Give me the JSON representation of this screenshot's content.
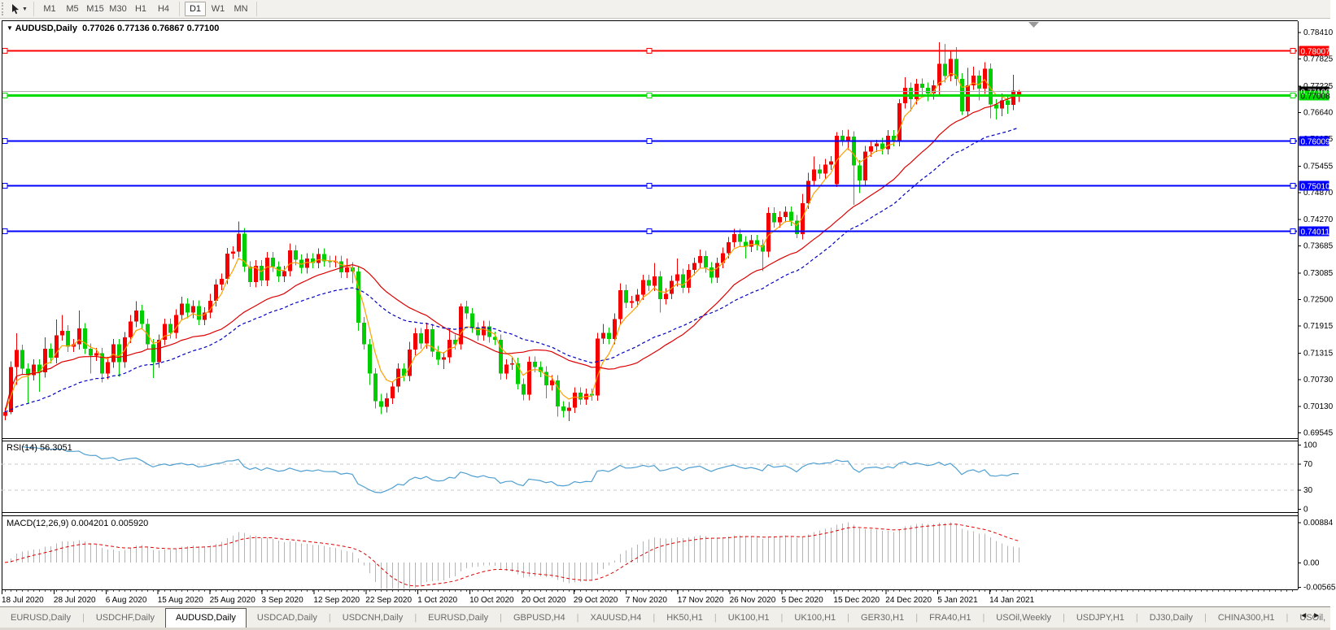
{
  "toolbar": {
    "timeframes": [
      "M1",
      "M5",
      "M15",
      "M30",
      "H1",
      "H4",
      "D1",
      "W1",
      "MN"
    ],
    "active_timeframe": "D1",
    "pointer_icon": "cursor-icon"
  },
  "chart": {
    "title": {
      "symbol": "AUDUSD,Daily",
      "open": "0.77026",
      "high": "0.77136",
      "low": "0.76867",
      "close": "0.77100"
    }
  },
  "indicators": {
    "rsi": {
      "name": "RSI(14)",
      "value": "56.3051",
      "levels": [
        "100",
        "70",
        "30",
        "0"
      ],
      "level_values": [
        100,
        70,
        30,
        0
      ]
    },
    "macd": {
      "name": "MACD(12,26,9)",
      "values": "0.004201 0.005920",
      "axis": [
        "0.00884",
        "0.00",
        "-0.00565"
      ],
      "axis_values": [
        0.00884,
        0,
        -0.00565
      ]
    }
  },
  "price_axis": {
    "ticks": [
      "0.78410",
      "0.77825",
      "0.77225",
      "0.76640",
      "0.76055",
      "0.75455",
      "0.74870",
      "0.74270",
      "0.73685",
      "0.73085",
      "0.72500",
      "0.71915",
      "0.71315",
      "0.70730",
      "0.70130",
      "0.69545"
    ]
  },
  "time_axis": {
    "labels": [
      {
        "x": 2,
        "text": "18 Jul 2020"
      },
      {
        "x": 65.9,
        "text": "28 Jul 2020"
      },
      {
        "x": 129.8,
        "text": "6 Aug 2020"
      },
      {
        "x": 193.7,
        "text": "15 Aug 2020"
      },
      {
        "x": 257.6,
        "text": "25 Aug 2020"
      },
      {
        "x": 321.5,
        "text": "3 Sep 2020"
      },
      {
        "x": 385.4,
        "text": "12 Sep 2020"
      },
      {
        "x": 449.3,
        "text": "22 Sep 2020"
      },
      {
        "x": 513.2,
        "text": "1 Oct 2020"
      },
      {
        "x": 577.1,
        "text": "10 Oct 2020"
      },
      {
        "x": 641.0,
        "text": "20 Oct 2020"
      },
      {
        "x": 704.9,
        "text": "29 Oct 2020"
      },
      {
        "x": 768.8,
        "text": "7 Nov 2020"
      },
      {
        "x": 832.7,
        "text": "17 Nov 2020"
      },
      {
        "x": 896.6,
        "text": "26 Nov 2020"
      },
      {
        "x": 960.5,
        "text": "5 Dec 2020"
      },
      {
        "x": 1024.4,
        "text": "15 Dec 2020"
      },
      {
        "x": 1088.3,
        "text": "24 Dec 2020"
      },
      {
        "x": 1152.2,
        "text": "5 Jan 2021"
      },
      {
        "x": 1216.1,
        "text": "14 Jan 2021"
      }
    ]
  },
  "lines": [
    {
      "price": 0.78007,
      "label": "0.78007",
      "color": "#FF0000",
      "width": 2,
      "text_color": "#FFFFFF"
    },
    {
      "price": 0.77008,
      "label": "0.77008",
      "color": "#00DC00",
      "width": 3,
      "text_color": "#000000"
    },
    {
      "price": 0.76009,
      "label": "0.76009",
      "color": "#0000FF",
      "width": 2,
      "text_color": "#FFFFFF"
    },
    {
      "price": 0.7501,
      "label": "0.75010",
      "color": "#0000FF",
      "width": 2,
      "text_color": "#FFFFFF"
    },
    {
      "price": 0.74011,
      "label": "0.74011",
      "color": "#0000FF",
      "width": 2,
      "text_color": "#FFFFFF"
    }
  ],
  "current_price": {
    "value": 0.771,
    "label": "0.77100",
    "line_color": "#B0B0B0",
    "box_color": "#000000"
  },
  "tabs": {
    "active_index": 2,
    "items": [
      "EURUSD,Daily",
      "USDCHF,Daily",
      "AUDUSD,Daily",
      "USDCAD,Daily",
      "USDCNH,Daily",
      "EURUSD,Daily",
      "GBPUSD,H4",
      "XAUUSD,H4",
      "HK50,H1",
      "UK100,H1",
      "UK100,H1",
      "GER30,H1",
      "FRA40,H1",
      "USOil,Weekly",
      "USDJPY,H1",
      "DJ30,Daily",
      "CHINA300,H1",
      "USOil,"
    ],
    "scroll_left": "◄",
    "scroll_right": "►"
  },
  "colors": {
    "bull": "#F40000",
    "bear": "#00CE00",
    "ma_fast": "#FFA000",
    "ma_mid": "#DD0000",
    "ma_slow": "#0000C0",
    "rsi": "#4F9FD0",
    "macd_hist": "#B4B4B4",
    "macd_signal": "#E00000",
    "border": "#000000",
    "grid_dash": "#CCCCCC"
  },
  "chart_data": {
    "type": "candlestick",
    "symbol": "AUDUSD",
    "timeframe": "Daily",
    "ylim": [
      0.69421,
      0.78655
    ],
    "overlays": [
      {
        "name": "MA fast",
        "method": "ema",
        "period": 5,
        "color": "#FFA000"
      },
      {
        "name": "MA mid",
        "method": "sma",
        "period": 25,
        "color": "#DD0000"
      },
      {
        "name": "MA slow",
        "method": "ema",
        "period": 40,
        "color": "#0000C0",
        "dashed": true
      }
    ],
    "panes": [
      {
        "type": "RSI",
        "period": 14,
        "current": 56.3051
      },
      {
        "type": "MACD",
        "fast": 12,
        "slow": 26,
        "signal": 9,
        "current": [
          0.004201,
          0.00592
        ]
      }
    ],
    "ohlc": [
      [
        0.6992,
        0.701,
        0.6982,
        0.7
      ],
      [
        0.7,
        0.7112,
        0.6995,
        0.71
      ],
      [
        0.71,
        0.7174,
        0.706,
        0.7137
      ],
      [
        0.7137,
        0.7149,
        0.7084,
        0.7096
      ],
      [
        0.7096,
        0.7108,
        0.702,
        0.7082
      ],
      [
        0.7082,
        0.7117,
        0.707,
        0.7105
      ],
      [
        0.7105,
        0.7117,
        0.7045,
        0.7088
      ],
      [
        0.7088,
        0.7165,
        0.7076,
        0.714
      ],
      [
        0.714,
        0.7152,
        0.7108,
        0.712
      ],
      [
        0.712,
        0.7205,
        0.7108,
        0.717
      ],
      [
        0.717,
        0.7215,
        0.7158,
        0.718
      ],
      [
        0.718,
        0.7192,
        0.7133,
        0.7145
      ],
      [
        0.7145,
        0.7162,
        0.7133,
        0.715
      ],
      [
        0.715,
        0.7225,
        0.7138,
        0.7185
      ],
      [
        0.7185,
        0.7197,
        0.7128,
        0.714
      ],
      [
        0.714,
        0.7152,
        0.7085,
        0.7125
      ],
      [
        0.7125,
        0.7142,
        0.7113,
        0.713
      ],
      [
        0.713,
        0.7142,
        0.7065,
        0.7085
      ],
      [
        0.7085,
        0.7122,
        0.7073,
        0.711
      ],
      [
        0.711,
        0.7162,
        0.7098,
        0.715
      ],
      [
        0.715,
        0.7162,
        0.7078,
        0.711
      ],
      [
        0.711,
        0.7177,
        0.7098,
        0.7165
      ],
      [
        0.7165,
        0.7215,
        0.7153,
        0.72
      ],
      [
        0.72,
        0.7245,
        0.7188,
        0.7225
      ],
      [
        0.7225,
        0.7237,
        0.7183,
        0.7195
      ],
      [
        0.7195,
        0.7207,
        0.7138,
        0.715
      ],
      [
        0.715,
        0.7162,
        0.7075,
        0.711
      ],
      [
        0.711,
        0.7172,
        0.7098,
        0.716
      ],
      [
        0.716,
        0.7207,
        0.7148,
        0.7195
      ],
      [
        0.7195,
        0.7207,
        0.7163,
        0.7175
      ],
      [
        0.7175,
        0.7227,
        0.7163,
        0.7215
      ],
      [
        0.7215,
        0.7255,
        0.7203,
        0.724
      ],
      [
        0.724,
        0.7252,
        0.7208,
        0.722
      ],
      [
        0.722,
        0.7247,
        0.7208,
        0.7235
      ],
      [
        0.7235,
        0.7247,
        0.7192,
        0.7204
      ],
      [
        0.7204,
        0.7232,
        0.7192,
        0.722
      ],
      [
        0.722,
        0.7262,
        0.7208,
        0.7246
      ],
      [
        0.7246,
        0.7294,
        0.7234,
        0.7282
      ],
      [
        0.7282,
        0.7307,
        0.727,
        0.7295
      ],
      [
        0.7295,
        0.7363,
        0.7283,
        0.7351
      ],
      [
        0.7351,
        0.7367,
        0.7339,
        0.7355
      ],
      [
        0.7355,
        0.7422,
        0.7343,
        0.7395
      ],
      [
        0.7395,
        0.7407,
        0.731,
        0.7322
      ],
      [
        0.7322,
        0.7334,
        0.7277,
        0.7288
      ],
      [
        0.7288,
        0.7336,
        0.7276,
        0.7324
      ],
      [
        0.7324,
        0.7336,
        0.7279,
        0.7291
      ],
      [
        0.7291,
        0.7354,
        0.7279,
        0.7342
      ],
      [
        0.7342,
        0.7354,
        0.731,
        0.7322
      ],
      [
        0.7322,
        0.7334,
        0.7288,
        0.73
      ],
      [
        0.73,
        0.7324,
        0.7288,
        0.7312
      ],
      [
        0.7312,
        0.7373,
        0.73,
        0.7358
      ],
      [
        0.7358,
        0.737,
        0.7325,
        0.7337
      ],
      [
        0.7337,
        0.7349,
        0.7307,
        0.7319
      ],
      [
        0.7319,
        0.7352,
        0.7307,
        0.734
      ],
      [
        0.734,
        0.7352,
        0.7318,
        0.733
      ],
      [
        0.733,
        0.7362,
        0.7318,
        0.735
      ],
      [
        0.735,
        0.7362,
        0.7322,
        0.7334
      ],
      [
        0.7334,
        0.7346,
        0.732,
        0.7332
      ],
      [
        0.7332,
        0.7346,
        0.732,
        0.7334
      ],
      [
        0.7334,
        0.7346,
        0.7297,
        0.7309
      ],
      [
        0.7309,
        0.734,
        0.7297,
        0.732
      ],
      [
        0.732,
        0.7332,
        0.7285,
        0.7311
      ],
      [
        0.7311,
        0.7323,
        0.718,
        0.7198
      ],
      [
        0.7198,
        0.721,
        0.7138,
        0.715
      ],
      [
        0.715,
        0.7162,
        0.706,
        0.7085
      ],
      [
        0.7085,
        0.7097,
        0.7008,
        0.7024
      ],
      [
        0.7024,
        0.704,
        0.6995,
        0.7011
      ],
      [
        0.7011,
        0.7042,
        0.6999,
        0.703
      ],
      [
        0.703,
        0.7068,
        0.7018,
        0.7056
      ],
      [
        0.7056,
        0.7108,
        0.7044,
        0.7096
      ],
      [
        0.7096,
        0.7108,
        0.7068,
        0.708
      ],
      [
        0.708,
        0.7155,
        0.7068,
        0.7138
      ],
      [
        0.7138,
        0.7186,
        0.7126,
        0.7174
      ],
      [
        0.7174,
        0.7186,
        0.714,
        0.7152
      ],
      [
        0.7152,
        0.7198,
        0.714,
        0.7183
      ],
      [
        0.7183,
        0.7195,
        0.7122,
        0.7134
      ],
      [
        0.7134,
        0.7146,
        0.7104,
        0.7116
      ],
      [
        0.7116,
        0.7133,
        0.7095,
        0.7121
      ],
      [
        0.7121,
        0.7185,
        0.7109,
        0.716
      ],
      [
        0.716,
        0.7172,
        0.7138,
        0.715
      ],
      [
        0.715,
        0.724,
        0.7138,
        0.7234
      ],
      [
        0.7234,
        0.7246,
        0.7206,
        0.7218
      ],
      [
        0.7218,
        0.723,
        0.7175,
        0.7187
      ],
      [
        0.7187,
        0.7199,
        0.7158,
        0.717
      ],
      [
        0.717,
        0.7202,
        0.7158,
        0.719
      ],
      [
        0.719,
        0.7202,
        0.7154,
        0.7166
      ],
      [
        0.7166,
        0.7178,
        0.7148,
        0.716
      ],
      [
        0.716,
        0.7172,
        0.7072,
        0.7085
      ],
      [
        0.7085,
        0.7117,
        0.7073,
        0.7105
      ],
      [
        0.7105,
        0.712,
        0.7093,
        0.7108
      ],
      [
        0.7108,
        0.712,
        0.705,
        0.7062
      ],
      [
        0.7062,
        0.7074,
        0.7026,
        0.7038
      ],
      [
        0.7038,
        0.7123,
        0.7026,
        0.7111
      ],
      [
        0.7111,
        0.7123,
        0.7088,
        0.71
      ],
      [
        0.71,
        0.7112,
        0.7077,
        0.7089
      ],
      [
        0.7089,
        0.7101,
        0.703,
        0.7059
      ],
      [
        0.7059,
        0.7082,
        0.7047,
        0.707
      ],
      [
        0.707,
        0.7082,
        0.699,
        0.7012
      ],
      [
        0.7012,
        0.7024,
        0.6988,
        0.7002
      ],
      [
        0.7002,
        0.7022,
        0.698,
        0.701
      ],
      [
        0.701,
        0.7055,
        0.6998,
        0.7043
      ],
      [
        0.7043,
        0.7055,
        0.7016,
        0.7028
      ],
      [
        0.7028,
        0.7052,
        0.7016,
        0.704
      ],
      [
        0.704,
        0.7052,
        0.7025,
        0.7037
      ],
      [
        0.7037,
        0.7175,
        0.7025,
        0.7163
      ],
      [
        0.7163,
        0.7195,
        0.7151,
        0.7175
      ],
      [
        0.7175,
        0.7187,
        0.715,
        0.7162
      ],
      [
        0.7162,
        0.7218,
        0.715,
        0.7206
      ],
      [
        0.7206,
        0.7285,
        0.7194,
        0.727
      ],
      [
        0.727,
        0.7282,
        0.723,
        0.7242
      ],
      [
        0.7242,
        0.7257,
        0.723,
        0.7245
      ],
      [
        0.7245,
        0.7272,
        0.7233,
        0.726
      ],
      [
        0.726,
        0.7304,
        0.7248,
        0.7292
      ],
      [
        0.7292,
        0.7304,
        0.7268,
        0.728
      ],
      [
        0.728,
        0.733,
        0.7268,
        0.73
      ],
      [
        0.73,
        0.7312,
        0.722,
        0.725
      ],
      [
        0.725,
        0.7274,
        0.7238,
        0.7262
      ],
      [
        0.7262,
        0.7302,
        0.725,
        0.729
      ],
      [
        0.729,
        0.734,
        0.7278,
        0.7305
      ],
      [
        0.7305,
        0.7317,
        0.7263,
        0.7275
      ],
      [
        0.7275,
        0.7327,
        0.7263,
        0.7315
      ],
      [
        0.7315,
        0.7342,
        0.7303,
        0.733
      ],
      [
        0.733,
        0.736,
        0.7318,
        0.7345
      ],
      [
        0.7345,
        0.7357,
        0.7308,
        0.732
      ],
      [
        0.732,
        0.7332,
        0.7285,
        0.7298
      ],
      [
        0.7298,
        0.7342,
        0.7286,
        0.733
      ],
      [
        0.733,
        0.7364,
        0.7318,
        0.7352
      ],
      [
        0.7352,
        0.7388,
        0.734,
        0.7376
      ],
      [
        0.7376,
        0.7406,
        0.7364,
        0.7394
      ],
      [
        0.7394,
        0.7406,
        0.7365,
        0.7377
      ],
      [
        0.7377,
        0.7389,
        0.734,
        0.7366
      ],
      [
        0.7366,
        0.7392,
        0.7354,
        0.738
      ],
      [
        0.738,
        0.7392,
        0.7358,
        0.737
      ],
      [
        0.737,
        0.7382,
        0.7312,
        0.7355
      ],
      [
        0.7355,
        0.7453,
        0.7343,
        0.7441
      ],
      [
        0.7441,
        0.7453,
        0.7408,
        0.742
      ],
      [
        0.742,
        0.7444,
        0.7408,
        0.7432
      ],
      [
        0.7432,
        0.7455,
        0.742,
        0.7443
      ],
      [
        0.7443,
        0.7455,
        0.7412,
        0.7424
      ],
      [
        0.7424,
        0.7436,
        0.7385,
        0.7394
      ],
      [
        0.7394,
        0.7483,
        0.7382,
        0.7462
      ],
      [
        0.7462,
        0.753,
        0.745,
        0.7512
      ],
      [
        0.7512,
        0.7566,
        0.75,
        0.7537
      ],
      [
        0.7537,
        0.7549,
        0.7516,
        0.7528
      ],
      [
        0.7528,
        0.756,
        0.7516,
        0.7548
      ],
      [
        0.7548,
        0.7567,
        0.7536,
        0.7555
      ],
      [
        0.7505,
        0.762,
        0.7498,
        0.7612
      ],
      [
        0.7612,
        0.7624,
        0.7589,
        0.7601
      ],
      [
        0.7601,
        0.7625,
        0.758,
        0.761
      ],
      [
        0.761,
        0.7622,
        0.7459,
        0.7546
      ],
      [
        0.7546,
        0.7558,
        0.7485,
        0.7513
      ],
      [
        0.7513,
        0.7589,
        0.7501,
        0.7577
      ],
      [
        0.7577,
        0.76,
        0.7565,
        0.7588
      ],
      [
        0.7588,
        0.7603,
        0.7576,
        0.7595
      ],
      [
        0.7595,
        0.7607,
        0.757,
        0.7582
      ],
      [
        0.7582,
        0.7624,
        0.757,
        0.7612
      ],
      [
        0.7612,
        0.7624,
        0.7588,
        0.76
      ],
      [
        0.76,
        0.7693,
        0.7588,
        0.7684
      ],
      [
        0.7684,
        0.7741,
        0.7672,
        0.7718
      ],
      [
        0.7718,
        0.773,
        0.7666,
        0.7693
      ],
      [
        0.7693,
        0.7738,
        0.7681,
        0.7727
      ],
      [
        0.7727,
        0.7739,
        0.7698,
        0.7718
      ],
      [
        0.7718,
        0.773,
        0.7688,
        0.7705
      ],
      [
        0.7705,
        0.7735,
        0.7692,
        0.7723
      ],
      [
        0.7723,
        0.7819,
        0.77,
        0.7771
      ],
      [
        0.7771,
        0.7815,
        0.773,
        0.7744
      ],
      [
        0.7744,
        0.78,
        0.7732,
        0.7782
      ],
      [
        0.7782,
        0.7808,
        0.7722,
        0.7738
      ],
      [
        0.7738,
        0.775,
        0.7658,
        0.7666
      ],
      [
        0.7666,
        0.7762,
        0.7654,
        0.7723
      ],
      [
        0.7723,
        0.7765,
        0.7713,
        0.7745
      ],
      [
        0.7745,
        0.7757,
        0.769,
        0.7716
      ],
      [
        0.7716,
        0.7775,
        0.7704,
        0.776
      ],
      [
        0.776,
        0.7772,
        0.765,
        0.7681
      ],
      [
        0.7681,
        0.7693,
        0.7648,
        0.7672
      ],
      [
        0.7672,
        0.7705,
        0.7655,
        0.769
      ],
      [
        0.769,
        0.7702,
        0.766,
        0.768
      ],
      [
        0.768,
        0.7747,
        0.7668,
        0.7712
      ],
      [
        0.77026,
        0.77136,
        0.76867,
        0.771
      ]
    ]
  }
}
